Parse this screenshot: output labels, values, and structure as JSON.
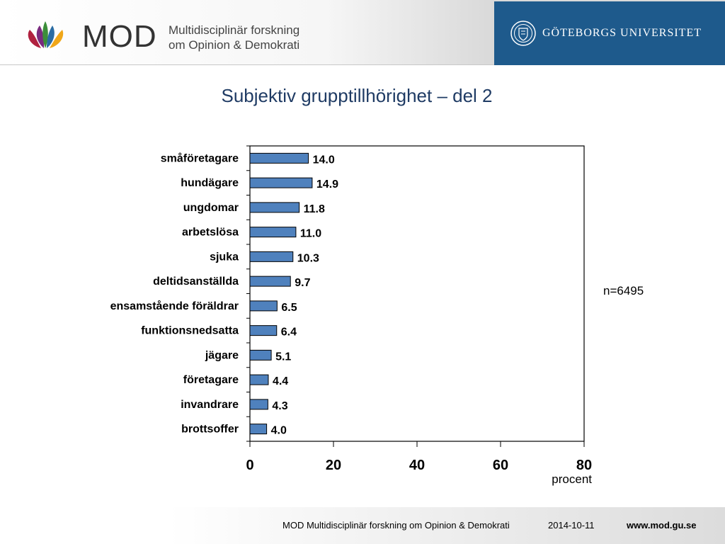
{
  "header": {
    "logo_text": "MOD",
    "logo_sub_line1": "Multidisciplinär forskning",
    "logo_sub_line2": "om Opinion & Demokrati",
    "university": "GÖTEBORGS UNIVERSITET"
  },
  "slide": {
    "title": "Subjektiv grupptillhörighet – del 2",
    "sample_size": "n=6495"
  },
  "chart_data": {
    "type": "bar",
    "orientation": "horizontal",
    "categories": [
      "småföretagare",
      "hundägare",
      "ungdomar",
      "arbetslösa",
      "sjuka",
      "deltidsanställda",
      "ensamstående föräldrar",
      "funktionsnedsatta",
      "jägare",
      "företagare",
      "invandrare",
      "brottsoffer"
    ],
    "values": [
      14.0,
      14.9,
      11.8,
      11.0,
      10.3,
      9.7,
      6.5,
      6.4,
      5.1,
      4.4,
      4.3,
      4.0
    ],
    "value_labels": [
      "14.0",
      "14.9",
      "11.8",
      "11.0",
      "10.3",
      "9.7",
      "6.5",
      "6.4",
      "5.1",
      "4.4",
      "4.3",
      "4.0"
    ],
    "xlabel": "procent",
    "xlim": [
      0,
      80
    ],
    "xticks": [
      0,
      20,
      40,
      60,
      80
    ],
    "grid": false,
    "bar_color": "#4f81bd"
  },
  "footer": {
    "org": "MOD Multidisciplinär forskning om Opinion & Demokrati",
    "date": "2014-10-11",
    "url": "www.mod.gu.se"
  }
}
